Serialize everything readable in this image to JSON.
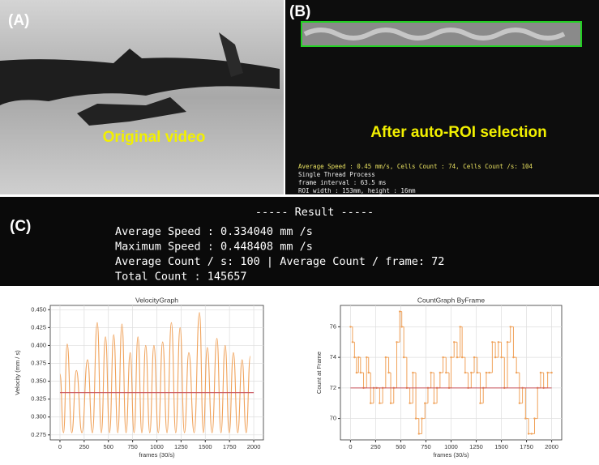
{
  "panels": {
    "a": {
      "label": "(A)",
      "caption": "Original video"
    },
    "b": {
      "label": "(B)",
      "caption": "After auto-ROI selection",
      "overlay": [
        "Average Speed : 0.45 mm/s, Cells Count : 74, Cells Count /s: 104",
        "Single Thread Process",
        "frame interval :  63.5 ms",
        "ROI width :  153mm, height : 16mm"
      ]
    },
    "c": {
      "label": "(C)",
      "heading": "----- Result -----",
      "lines": [
        "Average Speed : 0.334040 mm /s",
        "Maximum Speed : 0.448408 mm /s",
        "Average Count / s: 100   |   Average Count / frame: 72",
        "Total Count : 145657"
      ]
    }
  },
  "chart_data": [
    {
      "type": "line",
      "title": "VelocityGraph",
      "xlabel": "frames (30/s)",
      "ylabel": "Velocity (mm / s)",
      "grid": true,
      "xlim": [
        -100,
        2100
      ],
      "xticks": [
        0,
        250,
        500,
        750,
        1000,
        1250,
        1500,
        1750,
        2000
      ],
      "ylim": [
        0.268,
        0.456
      ],
      "yticks": [
        0.275,
        {
          "value": 0.3,
          "label": "0.300"
        },
        0.325,
        {
          "value": 0.35,
          "label": "0.350"
        },
        0.375,
        {
          "value": 0.4,
          "label": "0.400"
        },
        0.425,
        {
          "value": 0.45,
          "label": "0.450"
        }
      ],
      "series": [
        {
          "color": "#f0a25a",
          "x": [
            0,
            37,
            75,
            122,
            170,
            227,
            285,
            335,
            385,
            427,
            470,
            512,
            555,
            597,
            640,
            682,
            725,
            765,
            805,
            845,
            885,
            927,
            970,
            1015,
            1060,
            1105,
            1150,
            1195,
            1240,
            1285,
            1330,
            1385,
            1440,
            1480,
            1520,
            1570,
            1620,
            1662,
            1705,
            1747,
            1790,
            1835,
            1880,
            1922,
            1965
          ],
          "values": [
            0.36,
            0.278,
            0.402,
            0.278,
            0.365,
            0.278,
            0.38,
            0.278,
            0.432,
            0.278,
            0.412,
            0.278,
            0.415,
            0.278,
            0.43,
            0.278,
            0.39,
            0.278,
            0.412,
            0.278,
            0.4,
            0.278,
            0.4,
            0.278,
            0.405,
            0.278,
            0.432,
            0.278,
            0.425,
            0.278,
            0.39,
            0.278,
            0.446,
            0.278,
            0.397,
            0.278,
            0.41,
            0.278,
            0.4,
            0.278,
            0.39,
            0.278,
            0.38,
            0.278,
            0.385
          ]
        },
        {
          "color": "#c8505a",
          "x": [
            0,
            2000
          ],
          "values": [
            0.334,
            0.334
          ]
        }
      ]
    },
    {
      "type": "line",
      "step": true,
      "title": "CountGraph ByFrame",
      "xlabel": "frames (30/s)",
      "ylabel": "Count at Frame",
      "grid": true,
      "xlim": [
        -100,
        2100
      ],
      "xticks": [
        0,
        250,
        500,
        750,
        1000,
        1250,
        1500,
        1750,
        2000
      ],
      "ylim": [
        68.6,
        77.4
      ],
      "yticks": [
        70,
        72,
        74,
        76
      ],
      "series": [
        {
          "color": "#f0a25a",
          "x": [
            0,
            20,
            40,
            60,
            80,
            100,
            130,
            160,
            180,
            200,
            230,
            260,
            290,
            320,
            350,
            380,
            400,
            430,
            460,
            490,
            510,
            530,
            560,
            590,
            620,
            650,
            680,
            710,
            740,
            770,
            800,
            830,
            860,
            890,
            920,
            950,
            980,
            1000,
            1030,
            1060,
            1090,
            1110,
            1140,
            1170,
            1200,
            1230,
            1260,
            1290,
            1320,
            1350,
            1380,
            1410,
            1440,
            1470,
            1500,
            1530,
            1560,
            1590,
            1620,
            1650,
            1680,
            1710,
            1740,
            1770,
            1800,
            1830,
            1860,
            1890,
            1920,
            1960,
            2000
          ],
          "values": [
            76,
            75,
            74,
            73,
            74,
            73,
            72,
            74,
            73,
            71,
            72,
            72,
            71,
            72,
            74,
            73,
            71,
            72,
            75,
            77,
            76,
            74,
            72,
            71,
            73,
            70,
            69,
            70,
            71,
            72,
            73,
            71,
            72,
            73,
            74,
            73,
            72,
            74,
            75,
            74,
            76,
            74,
            73,
            72,
            73,
            74,
            73,
            71,
            72,
            73,
            73,
            75,
            74,
            75,
            74,
            72,
            75,
            76,
            74,
            73,
            71,
            72,
            70,
            69,
            69,
            70,
            72,
            73,
            72,
            73,
            73
          ]
        },
        {
          "color": "#c8505a",
          "x": [
            0,
            2000
          ],
          "values": [
            72,
            72
          ]
        }
      ]
    }
  ]
}
